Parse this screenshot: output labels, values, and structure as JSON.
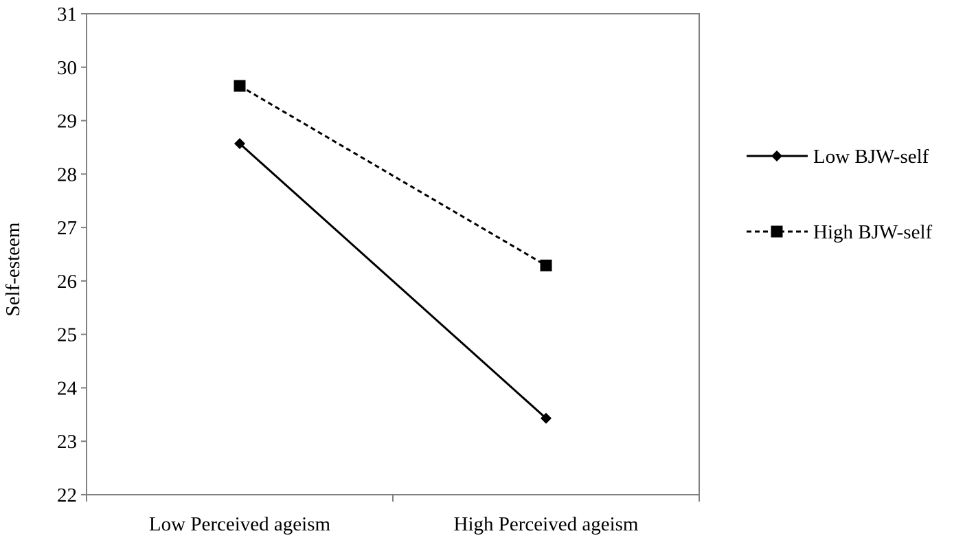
{
  "chart_data": {
    "type": "line",
    "title": "",
    "xlabel": "",
    "ylabel": "Self-esteem",
    "categories": [
      "Low Perceived ageism",
      "High Perceived ageism"
    ],
    "ylim": [
      22,
      31
    ],
    "yticks": [
      "22",
      "23",
      "24",
      "25",
      "26",
      "27",
      "28",
      "29",
      "30",
      "31"
    ],
    "grid": false,
    "legend_position": "right",
    "series": [
      {
        "name": "Low BJW-self",
        "values": [
          28.57,
          23.43
        ],
        "line_style": "solid",
        "marker": "diamond",
        "color": "#000000"
      },
      {
        "name": "High BJW-self",
        "values": [
          29.65,
          26.29
        ],
        "line_style": "dashed",
        "marker": "square",
        "color": "#000000"
      }
    ]
  }
}
